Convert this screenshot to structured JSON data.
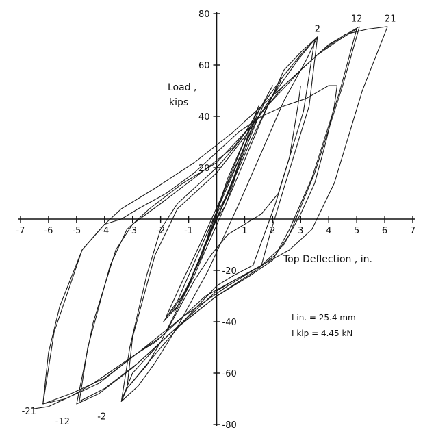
{
  "chart_data": {
    "type": "line",
    "title": "",
    "xlabel": "Top Deflection , in.",
    "ylabel_line1": "Load ,",
    "ylabel_line2": "kips",
    "xlim": [
      -7,
      7
    ],
    "ylim": [
      -80,
      80
    ],
    "x_ticks": [
      -7,
      -6,
      -5,
      -4,
      -3,
      -2,
      -1,
      1,
      2,
      3,
      4,
      5,
      6,
      7
    ],
    "x_tick_labels": [
      "-7",
      "-6",
      "-5",
      "-4",
      "-3",
      "-2",
      "-1",
      "1",
      "2",
      "3",
      "4",
      "5",
      "6",
      "7"
    ],
    "y_ticks": [
      80,
      60,
      40,
      20,
      -20,
      -40,
      -60,
      -80
    ],
    "y_tick_labels": [
      "80",
      "60",
      "40",
      "20",
      "-20",
      "-40",
      "-60",
      "-80"
    ],
    "grid": false,
    "legend": "none",
    "notes": [
      "I in. = 25.4 mm",
      "I kip = 4.45 kN"
    ],
    "cycle_labels": [
      {
        "text": "2",
        "x": 3.6,
        "y": 73
      },
      {
        "text": "12",
        "x": 5.0,
        "y": 77
      },
      {
        "text": "21",
        "x": 6.2,
        "y": 77
      },
      {
        "text": "-21",
        "x": -6.7,
        "y": -76
      },
      {
        "text": "-12",
        "x": -5.5,
        "y": -80
      },
      {
        "text": "-2",
        "x": -4.1,
        "y": -78
      }
    ],
    "series": [
      {
        "points": [
          [
            0,
            0
          ],
          [
            0.3,
            5
          ],
          [
            0.6,
            14
          ],
          [
            0.8,
            22
          ],
          [
            0.6,
            15
          ],
          [
            0.2,
            5
          ],
          [
            -0.2,
            -4
          ],
          [
            -0.5,
            -12
          ],
          [
            -0.7,
            -18
          ],
          [
            -0.5,
            -12
          ],
          [
            -0.1,
            -2
          ],
          [
            0,
            0
          ]
        ]
      },
      {
        "points": [
          [
            0,
            0
          ],
          [
            0.5,
            12
          ],
          [
            1.0,
            28
          ],
          [
            1.2,
            36
          ],
          [
            0.9,
            28
          ],
          [
            0.3,
            12
          ],
          [
            -0.3,
            -8
          ],
          [
            -0.8,
            -20
          ],
          [
            -1.1,
            -28
          ],
          [
            -0.8,
            -20
          ],
          [
            -0.2,
            -5
          ],
          [
            0,
            0
          ]
        ]
      },
      {
        "points": [
          [
            0,
            0
          ],
          [
            0.6,
            16
          ],
          [
            1.2,
            34
          ],
          [
            1.5,
            44
          ],
          [
            1.2,
            36
          ],
          [
            0.4,
            16
          ],
          [
            -0.4,
            -10
          ],
          [
            -1.0,
            -26
          ],
          [
            -1.5,
            -36
          ],
          [
            -1.1,
            -28
          ],
          [
            -0.3,
            -8
          ],
          [
            0,
            0
          ]
        ]
      },
      {
        "points": [
          [
            -0.2,
            -2
          ],
          [
            0.4,
            10
          ],
          [
            1.2,
            32
          ],
          [
            1.8,
            48
          ],
          [
            2.0,
            52
          ],
          [
            1.5,
            42
          ],
          [
            0.6,
            18
          ],
          [
            -0.6,
            -12
          ],
          [
            -1.4,
            -32
          ],
          [
            -1.9,
            -40
          ],
          [
            -1.4,
            -34
          ],
          [
            -0.5,
            -14
          ],
          [
            -0.2,
            -2
          ]
        ]
      },
      {
        "points": [
          [
            -1.0,
            -26
          ],
          [
            -0.4,
            -10
          ],
          [
            0.4,
            10
          ],
          [
            1.2,
            30
          ],
          [
            1.9,
            46
          ],
          [
            2.3,
            54
          ],
          [
            2.1,
            50
          ],
          [
            1.4,
            38
          ],
          [
            0.4,
            14
          ],
          [
            -0.6,
            -10
          ],
          [
            -1.3,
            -26
          ],
          [
            -1.8,
            -38
          ],
          [
            -1.6,
            -36
          ],
          [
            -1.0,
            -26
          ]
        ]
      },
      {
        "points": [
          [
            -2.0,
            -48
          ],
          [
            -0.8,
            -22
          ],
          [
            0.5,
            10
          ],
          [
            1.5,
            36
          ],
          [
            2.4,
            58
          ],
          [
            3.0,
            65
          ],
          [
            3.5,
            70
          ],
          [
            3.6,
            71
          ],
          [
            3.2,
            62
          ],
          [
            2.4,
            46
          ],
          [
            1.6,
            26
          ],
          [
            0.8,
            6
          ],
          [
            -0.3,
            -20
          ],
          [
            -1.4,
            -42
          ],
          [
            -2.2,
            -56
          ],
          [
            -2.8,
            -65
          ],
          [
            -3.4,
            -71
          ],
          [
            -3.2,
            -66
          ],
          [
            -2.5,
            -57
          ],
          [
            -2.0,
            -48
          ]
        ]
      },
      {
        "points": [
          [
            3.6,
            71
          ],
          [
            3.3,
            44
          ],
          [
            2.4,
            12
          ],
          [
            1.9,
            -6
          ],
          [
            1.6,
            -18
          ],
          [
            1.3,
            -20
          ],
          [
            0.6,
            -24
          ],
          [
            0,
            -28
          ],
          [
            -1.0,
            -38
          ],
          [
            -2.0,
            -48
          ],
          [
            -3.0,
            -60
          ],
          [
            -3.3,
            -68
          ],
          [
            -3.4,
            -71
          ],
          [
            -3.1,
            -50
          ],
          [
            -2.5,
            -22
          ],
          [
            -2.0,
            -4
          ],
          [
            -1.4,
            6
          ],
          [
            -0.6,
            14
          ],
          [
            0,
            20
          ],
          [
            0.8,
            30
          ],
          [
            1.6,
            44
          ],
          [
            2.4,
            56
          ],
          [
            3.0,
            64
          ],
          [
            3.6,
            71
          ]
        ]
      },
      {
        "points": [
          [
            3.5,
            70
          ],
          [
            3.1,
            42
          ],
          [
            2.1,
            6
          ],
          [
            1.3,
            -18
          ],
          [
            0.6,
            -22
          ],
          [
            0,
            -26
          ],
          [
            -1.2,
            -40
          ],
          [
            -2.3,
            -54
          ],
          [
            -3.2,
            -66
          ],
          [
            -3.0,
            -46
          ],
          [
            -2.2,
            -14
          ],
          [
            -1.4,
            4
          ],
          [
            -0.8,
            10
          ],
          [
            0,
            18
          ],
          [
            1.0,
            32
          ],
          [
            2.0,
            48
          ],
          [
            2.9,
            62
          ],
          [
            3.5,
            70
          ]
        ]
      },
      {
        "points": [
          [
            5.0,
            74
          ],
          [
            4.4,
            50
          ],
          [
            3.4,
            16
          ],
          [
            2.6,
            -4
          ],
          [
            2.0,
            -16
          ],
          [
            1.2,
            -22
          ],
          [
            0,
            -30
          ],
          [
            -1.4,
            -42
          ],
          [
            -2.8,
            -56
          ],
          [
            -4.0,
            -66
          ],
          [
            -4.9,
            -71
          ],
          [
            -4.6,
            -50
          ],
          [
            -3.8,
            -18
          ],
          [
            -3.2,
            -4
          ],
          [
            -2.4,
            4
          ],
          [
            -1.2,
            14
          ],
          [
            0,
            22
          ],
          [
            1.2,
            36
          ],
          [
            2.4,
            52
          ],
          [
            3.6,
            64
          ],
          [
            4.4,
            70
          ],
          [
            5.0,
            74
          ]
        ]
      },
      {
        "points": [
          [
            5.1,
            75
          ],
          [
            4.5,
            52
          ],
          [
            3.5,
            18
          ],
          [
            2.6,
            -6
          ],
          [
            2.1,
            -14
          ],
          [
            1.4,
            -20
          ],
          [
            0,
            -30
          ],
          [
            -1.6,
            -44
          ],
          [
            -3.0,
            -58
          ],
          [
            -4.2,
            -68
          ],
          [
            -5.0,
            -72
          ],
          [
            -4.4,
            -40
          ],
          [
            -3.6,
            -12
          ],
          [
            -3.0,
            -2
          ],
          [
            -2.0,
            6
          ],
          [
            -0.8,
            16
          ],
          [
            0.6,
            28
          ],
          [
            1.8,
            44
          ],
          [
            3.0,
            58
          ],
          [
            4.0,
            68
          ],
          [
            5.1,
            75
          ]
        ]
      },
      {
        "points": [
          [
            6.1,
            75
          ],
          [
            5.2,
            50
          ],
          [
            4.2,
            14
          ],
          [
            3.4,
            -4
          ],
          [
            2.6,
            -12
          ],
          [
            1.6,
            -18
          ],
          [
            0.4,
            -26
          ],
          [
            -1.2,
            -38
          ],
          [
            -2.8,
            -52
          ],
          [
            -4.2,
            -64
          ],
          [
            -5.4,
            -70
          ],
          [
            -6.2,
            -72
          ],
          [
            -5.8,
            -44
          ],
          [
            -4.8,
            -12
          ],
          [
            -4.0,
            -2
          ],
          [
            -3.4,
            4
          ],
          [
            -2.2,
            12
          ],
          [
            -0.8,
            22
          ],
          [
            0.6,
            34
          ],
          [
            2.0,
            48
          ],
          [
            3.0,
            58
          ],
          [
            3.8,
            66
          ],
          [
            4.6,
            72
          ],
          [
            5.4,
            74
          ],
          [
            6.1,
            75
          ]
        ]
      },
      {
        "points": [
          [
            -6.2,
            -72
          ],
          [
            -5.2,
            -68
          ],
          [
            -4.0,
            -62
          ],
          [
            -2.8,
            -52
          ],
          [
            -2.0,
            -46
          ],
          [
            -1.2,
            -38
          ],
          [
            -0.4,
            -30
          ],
          [
            0.6,
            -24
          ],
          [
            1.6,
            -18
          ],
          [
            2.4,
            -10
          ],
          [
            3.0,
            2
          ],
          [
            3.5,
            14
          ],
          [
            3.9,
            30
          ],
          [
            4.2,
            44
          ],
          [
            4.3,
            52
          ],
          [
            4.0,
            52
          ],
          [
            3.2,
            47
          ],
          [
            2.4,
            44
          ],
          [
            1.6,
            40
          ],
          [
            0.8,
            34
          ],
          [
            0,
            26
          ],
          [
            -0.8,
            18
          ],
          [
            -1.8,
            10
          ],
          [
            -2.8,
            4
          ],
          [
            -3.4,
            0
          ],
          [
            -4.0,
            -2
          ],
          [
            -4.8,
            -12
          ],
          [
            -5.6,
            -34
          ],
          [
            -6.0,
            -52
          ],
          [
            -6.2,
            -72
          ]
        ]
      },
      {
        "points": [
          [
            -6.6,
            -74
          ],
          [
            -6.0,
            -73
          ],
          [
            -5.2,
            -69
          ],
          [
            -4.4,
            -64
          ],
          [
            -3.6,
            -58
          ],
          [
            -2.8,
            -52
          ],
          [
            -2.2,
            -48
          ],
          [
            -1.8,
            -44
          ],
          [
            -1.4,
            -36
          ],
          [
            -0.8,
            -24
          ],
          [
            -0.2,
            -14
          ],
          [
            0.4,
            -6
          ],
          [
            1.0,
            -2
          ],
          [
            1.6,
            2
          ],
          [
            2.2,
            10
          ],
          [
            2.6,
            24
          ],
          [
            2.9,
            44
          ],
          [
            3.0,
            52
          ]
        ]
      }
    ]
  }
}
